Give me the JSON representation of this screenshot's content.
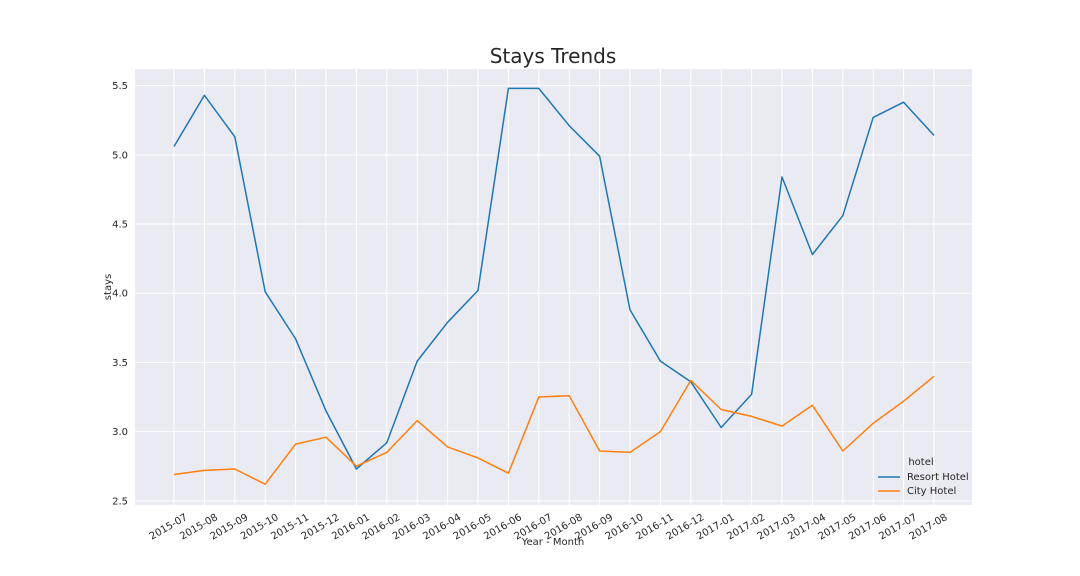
{
  "chart_data": {
    "type": "line",
    "title": "Stays Trends",
    "xlabel": "Year - Month",
    "ylabel": "stays",
    "categories": [
      "2015-07",
      "2015-08",
      "2015-09",
      "2015-10",
      "2015-11",
      "2015-12",
      "2016-01",
      "2016-02",
      "2016-03",
      "2016-04",
      "2016-05",
      "2016-06",
      "2016-07",
      "2016-08",
      "2016-09",
      "2016-10",
      "2016-11",
      "2016-12",
      "2017-01",
      "2017-02",
      "2017-03",
      "2017-04",
      "2017-05",
      "2017-06",
      "2017-07",
      "2017-08"
    ],
    "yticks": [
      "2.5",
      "3.0",
      "3.5",
      "4.0",
      "4.5",
      "5.0",
      "5.5"
    ],
    "ylim": [
      2.47,
      5.62
    ],
    "grid": true,
    "legend": {
      "title": "hotel",
      "placement": "lower-right"
    },
    "series": [
      {
        "name": "Resort Hotel",
        "color": "#1f77b4",
        "values": [
          5.06,
          5.43,
          5.13,
          4.01,
          3.67,
          3.15,
          2.73,
          2.92,
          3.51,
          3.79,
          4.02,
          5.48,
          5.48,
          5.21,
          4.99,
          3.88,
          3.51,
          3.36,
          3.03,
          3.27,
          4.84,
          4.28,
          4.56,
          5.27,
          5.38,
          5.14
        ]
      },
      {
        "name": "City Hotel",
        "color": "#ff7f0e",
        "values": [
          2.69,
          2.72,
          2.73,
          2.62,
          2.91,
          2.96,
          2.75,
          2.85,
          3.08,
          2.89,
          2.81,
          2.7,
          3.25,
          3.26,
          2.86,
          2.85,
          3.0,
          3.37,
          3.16,
          3.11,
          3.04,
          3.19,
          2.86,
          3.06,
          3.22,
          3.4
        ]
      }
    ]
  }
}
